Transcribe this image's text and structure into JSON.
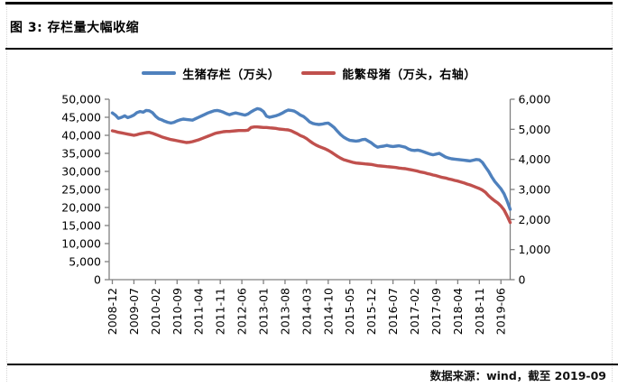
{
  "figure": {
    "title": "图 3: 存栏量大幅收缩",
    "source_note": "数据来源：wind，截至 2019-09"
  },
  "chart_data": {
    "type": "line",
    "title": "图 3: 存栏量大幅收缩",
    "legend_position": "top",
    "grid": false,
    "x_start": "2008-12",
    "x_end": "2019-09",
    "x_tick_interval_months": 7,
    "x_tick_labels": [
      "2008-12",
      "2009-07",
      "2010-02",
      "2010-09",
      "2011-04",
      "2011-11",
      "2012-06",
      "2013-01",
      "2013-08",
      "2014-03",
      "2014-10",
      "2015-05",
      "2015-12",
      "2016-07",
      "2017-02",
      "2017-09",
      "2018-04",
      "2018-11",
      "2019-06"
    ],
    "left_axis": {
      "min": 0,
      "max": 50000,
      "step": 5000,
      "tick_labels": [
        "0",
        "5,000",
        "10,000",
        "15,000",
        "20,000",
        "25,000",
        "30,000",
        "35,000",
        "40,000",
        "45,000",
        "50,000"
      ]
    },
    "right_axis": {
      "min": 0,
      "max": 6000,
      "step": 1000,
      "tick_labels": [
        "0",
        "1,000",
        "2,000",
        "3,000",
        "4,000",
        "5,000",
        "6,000"
      ]
    },
    "axis_color": "#808080",
    "series": [
      {
        "id": "pig-stock",
        "name": "生猪存栏（万头）",
        "axis": "left",
        "color": "#4F81BD",
        "values": [
          46200,
          45600,
          44700,
          45000,
          45400,
          44900,
          45200,
          45600,
          46300,
          46600,
          46400,
          46900,
          46800,
          46300,
          45300,
          44600,
          44300,
          43900,
          43600,
          43400,
          43600,
          44000,
          44300,
          44500,
          44400,
          44300,
          44200,
          44600,
          45000,
          45400,
          45800,
          46200,
          46500,
          46800,
          46900,
          46700,
          46400,
          46000,
          45700,
          46000,
          46200,
          46000,
          45800,
          45600,
          45900,
          46500,
          47000,
          47400,
          47200,
          46600,
          45300,
          45000,
          45200,
          45400,
          45700,
          46100,
          46600,
          47000,
          46900,
          46700,
          46200,
          45600,
          45200,
          44500,
          43700,
          43300,
          43100,
          43000,
          43100,
          43300,
          43400,
          42800,
          42100,
          41100,
          40200,
          39500,
          39000,
          38600,
          38500,
          38400,
          38500,
          38800,
          38900,
          38400,
          37900,
          37200,
          36700,
          36900,
          37000,
          37200,
          37000,
          36900,
          37000,
          37100,
          36900,
          36700,
          36200,
          35900,
          35800,
          35900,
          35700,
          35400,
          35100,
          34800,
          34600,
          34800,
          35000,
          34500,
          34000,
          33700,
          33500,
          33400,
          33300,
          33200,
          33100,
          33000,
          32900,
          33100,
          33300,
          33200,
          32500,
          31200,
          30000,
          28500,
          27200,
          26200,
          25200,
          23800,
          21800,
          19500
        ]
      },
      {
        "id": "sow-stock",
        "name": "能繁母猪（万头，右轴）",
        "axis": "right",
        "color": "#C0504D",
        "values": [
          4950,
          4930,
          4900,
          4880,
          4860,
          4840,
          4820,
          4800,
          4820,
          4850,
          4870,
          4890,
          4900,
          4870,
          4830,
          4790,
          4750,
          4720,
          4690,
          4660,
          4640,
          4620,
          4600,
          4580,
          4560,
          4570,
          4590,
          4620,
          4650,
          4690,
          4730,
          4770,
          4810,
          4850,
          4880,
          4900,
          4920,
          4930,
          4930,
          4940,
          4950,
          4960,
          4960,
          4960,
          4970,
          5060,
          5080,
          5080,
          5070,
          5060,
          5060,
          5050,
          5040,
          5030,
          5010,
          5000,
          4990,
          4980,
          4950,
          4900,
          4850,
          4790,
          4750,
          4690,
          4610,
          4540,
          4480,
          4430,
          4390,
          4350,
          4300,
          4240,
          4170,
          4100,
          4040,
          3990,
          3960,
          3930,
          3900,
          3880,
          3870,
          3860,
          3850,
          3840,
          3830,
          3810,
          3790,
          3780,
          3770,
          3760,
          3750,
          3740,
          3730,
          3710,
          3700,
          3690,
          3670,
          3650,
          3630,
          3610,
          3580,
          3560,
          3530,
          3510,
          3480,
          3460,
          3430,
          3400,
          3380,
          3350,
          3330,
          3300,
          3280,
          3250,
          3220,
          3180,
          3150,
          3110,
          3070,
          3030,
          2980,
          2900,
          2790,
          2700,
          2620,
          2550,
          2450,
          2320,
          2120,
          1900
        ]
      }
    ]
  }
}
